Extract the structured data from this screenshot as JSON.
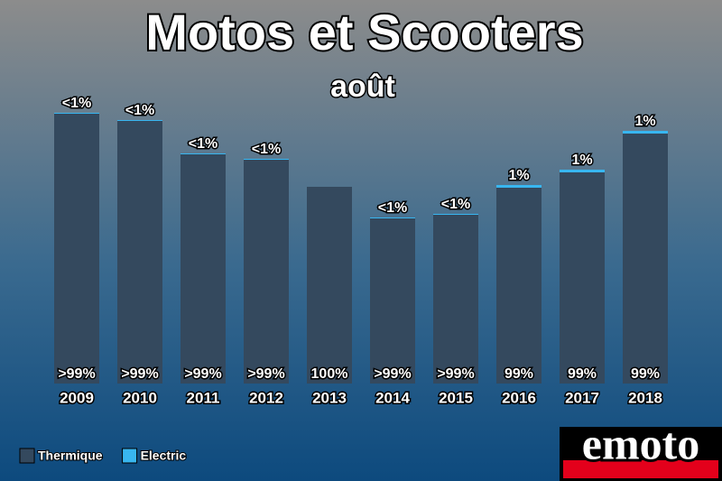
{
  "chart_data": {
    "type": "stacked_bar",
    "title": "Motos et Scooters",
    "subtitle": "août",
    "categories": [
      "2009",
      "2010",
      "2011",
      "2012",
      "2013",
      "2014",
      "2015",
      "2016",
      "2017",
      "2018"
    ],
    "series": [
      {
        "name": "Thermique",
        "color": "#34495e",
        "values": [
          299,
          291,
          254,
          248,
          218,
          183,
          187,
          217,
          234,
          277
        ],
        "value_labels": [
          ">99%",
          ">99%",
          ">99%",
          ">99%",
          "100%",
          ">99%",
          ">99%",
          "99%",
          "99%",
          "99%"
        ]
      },
      {
        "name": "Electric",
        "color": "#38b6f0",
        "values": [
          1,
          1,
          1,
          1,
          0,
          1,
          1,
          3,
          3,
          3
        ],
        "value_labels": [
          "<1%",
          "<1%",
          "<1%",
          "<1%",
          null,
          "<1%",
          "<1%",
          "1%",
          "1%",
          "1%"
        ]
      }
    ],
    "ylim": [
      0,
      300
    ],
    "legend": "bottom-left"
  },
  "logo": "emoto"
}
